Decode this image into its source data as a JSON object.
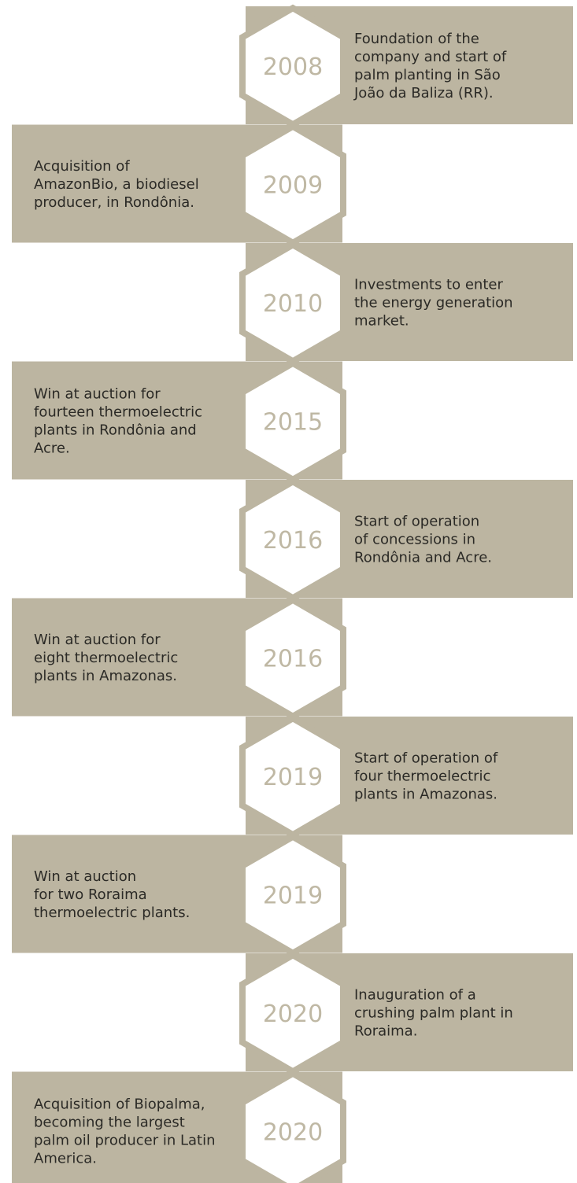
{
  "timeline": [
    {
      "year": "2008",
      "side": "right",
      "lines": [
        "Foundation of the",
        "company and start of",
        "palm planting in São",
        "João da Baliza (RR)."
      ]
    },
    {
      "year": "2009",
      "side": "left",
      "lines": [
        "Acquisition of",
        "AmazonBio, a biodiesel",
        "producer, in Rondônia."
      ]
    },
    {
      "year": "2010",
      "side": "right",
      "lines": [
        "Investments to enter",
        "the energy generation",
        "market."
      ]
    },
    {
      "year": "2015",
      "side": "left",
      "lines": [
        "Win at auction for",
        "fourteen thermoelectric",
        "plants in Rondônia and",
        "Acre."
      ]
    },
    {
      "year": "2016",
      "side": "right",
      "lines": [
        "Start of operation",
        "of concessions in",
        "Rondônia and Acre."
      ]
    },
    {
      "year": "2016",
      "side": "left",
      "lines": [
        "Win at auction for",
        "eight thermoelectric",
        "plants in Amazonas."
      ]
    },
    {
      "year": "2019",
      "side": "right",
      "lines": [
        "Start of operation of",
        "four thermoelectric",
        "plants in Amazonas."
      ]
    },
    {
      "year": "2019",
      "side": "left",
      "lines": [
        "Win at auction",
        "for two Roraima",
        "thermoelectric plants."
      ]
    },
    {
      "year": "2020",
      "side": "right",
      "lines": [
        "Inauguration of a",
        "crushing palm plant in",
        "Roraima."
      ]
    },
    {
      "year": "2020",
      "side": "left",
      "lines": [
        "Acquisition of Biopalma,",
        "becoming the largest",
        "palm oil producer in Latin",
        "America."
      ]
    }
  ]
}
